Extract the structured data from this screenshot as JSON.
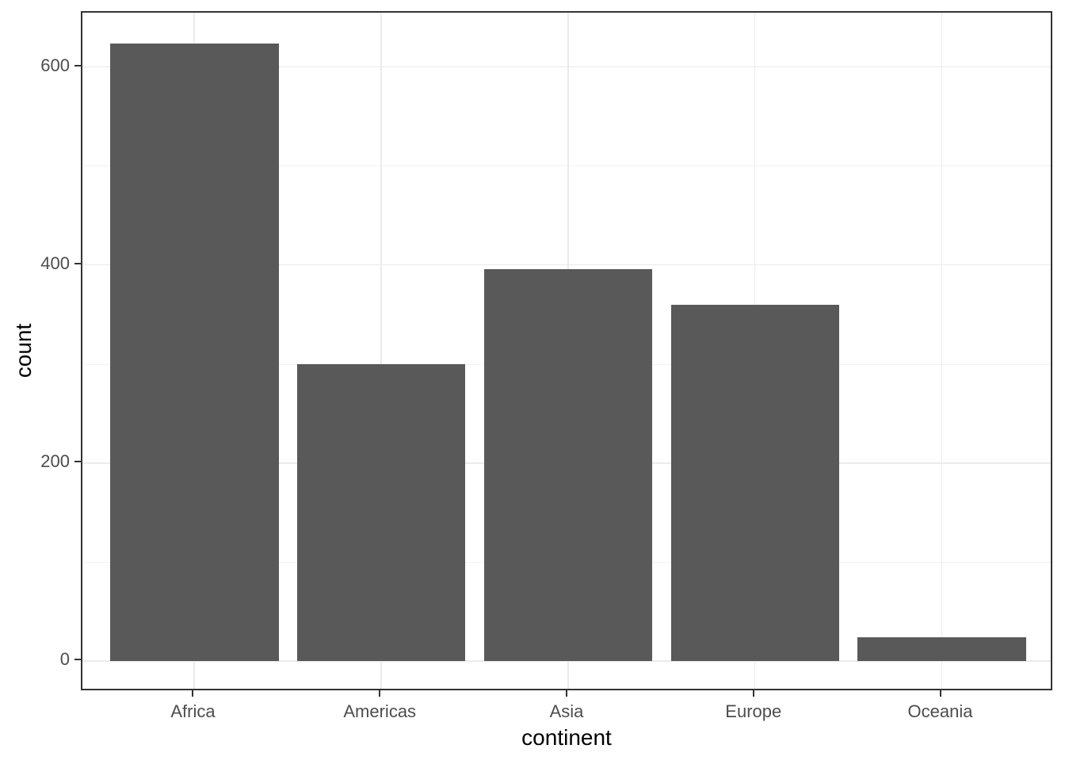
{
  "chart_data": {
    "type": "bar",
    "title": "",
    "xlabel": "continent",
    "ylabel": "count",
    "categories": [
      "Africa",
      "Americas",
      "Asia",
      "Europe",
      "Oceania"
    ],
    "values": [
      624,
      300,
      396,
      360,
      24
    ],
    "y_major_ticks": [
      0,
      200,
      400,
      600
    ],
    "y_minor_ticks": [
      100,
      300,
      500
    ],
    "ylim": [
      -31,
      655
    ],
    "legend_position": "none",
    "grid": "horizontal major+minor, vertical major at category centers",
    "colors": {
      "bar_fill": "#595959",
      "panel_background": "#ffffff",
      "panel_border": "#333333",
      "grid_major": "#ebebeb",
      "grid_minor": "#f2f2f2",
      "axis_text": "#4d4d4d",
      "axis_title": "#000000",
      "tick_mark": "#333333"
    }
  }
}
